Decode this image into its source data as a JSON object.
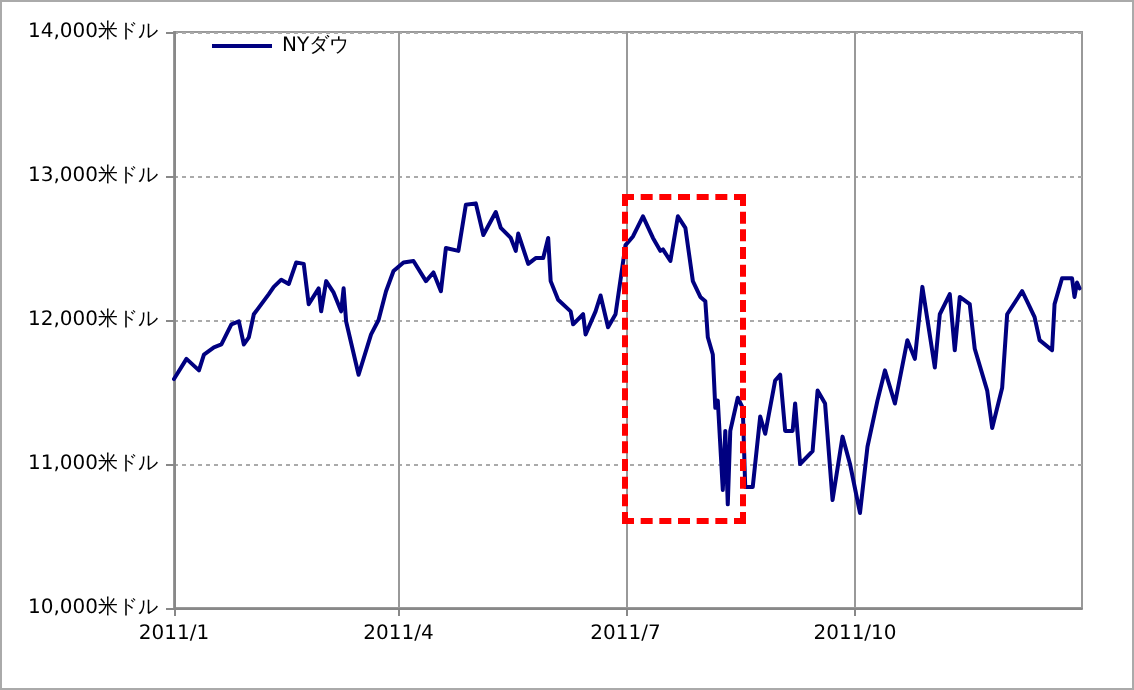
{
  "chart_data": {
    "type": "line",
    "x": [
      "2011-01-01",
      "2011-01-06",
      "2011-01-11",
      "2011-01-13",
      "2011-01-17",
      "2011-01-20",
      "2011-01-24",
      "2011-01-27",
      "2011-01-29",
      "2011-01-31",
      "2011-02-02",
      "2011-02-08",
      "2011-02-10",
      "2011-02-13",
      "2011-02-16",
      "2011-02-19",
      "2011-02-22",
      "2011-02-24",
      "2011-02-28",
      "2011-03-01",
      "2011-03-03",
      "2011-03-06",
      "2011-03-09",
      "2011-03-10",
      "2011-03-11",
      "2011-03-16",
      "2011-03-21",
      "2011-03-24",
      "2011-03-27",
      "2011-03-30",
      "2011-04-03",
      "2011-04-07",
      "2011-04-12",
      "2011-04-15",
      "2011-04-18",
      "2011-04-20",
      "2011-04-25",
      "2011-04-28",
      "2011-05-02",
      "2011-05-05",
      "2011-05-10",
      "2011-05-12",
      "2011-05-16",
      "2011-05-18",
      "2011-05-19",
      "2011-05-23",
      "2011-05-26",
      "2011-05-29",
      "2011-05-31",
      "2011-06-01",
      "2011-06-04",
      "2011-06-09",
      "2011-06-10",
      "2011-06-14",
      "2011-06-15",
      "2011-06-19",
      "2011-06-21",
      "2011-06-24",
      "2011-06-27",
      "2011-07-01",
      "2011-07-04",
      "2011-07-08",
      "2011-07-12",
      "2011-07-15",
      "2011-07-16",
      "2011-07-19",
      "2011-07-22",
      "2011-07-25",
      "2011-07-28",
      "2011-07-31",
      "2011-08-02",
      "2011-08-03",
      "2011-08-05",
      "2011-08-06",
      "2011-08-07",
      "2011-08-09",
      "2011-08-10",
      "2011-08-11",
      "2011-08-12",
      "2011-08-15",
      "2011-08-17",
      "2011-08-18",
      "2011-08-21",
      "2011-08-24",
      "2011-08-26",
      "2011-08-30",
      "2011-09-01",
      "2011-09-03",
      "2011-09-06",
      "2011-09-07",
      "2011-09-09",
      "2011-09-14",
      "2011-09-16",
      "2011-09-19",
      "2011-09-22",
      "2011-09-26",
      "2011-09-29",
      "2011-10-03",
      "2011-10-06",
      "2011-10-10",
      "2011-10-13",
      "2011-10-17",
      "2011-10-22",
      "2011-10-25",
      "2011-10-28",
      "2011-11-02",
      "2011-11-04",
      "2011-11-08",
      "2011-11-10",
      "2011-11-12",
      "2011-11-16",
      "2011-11-18",
      "2011-11-23",
      "2011-11-25",
      "2011-11-29",
      "2011-12-01",
      "2011-12-07",
      "2011-12-09",
      "2011-12-12",
      "2011-12-14",
      "2011-12-19",
      "2011-12-20",
      "2011-12-23",
      "2011-12-27",
      "2011-12-28",
      "2011-12-29",
      "2011-12-30"
    ],
    "series": [
      {
        "name": "NYダウ",
        "color": "#000080",
        "values": [
          11590,
          11730,
          11650,
          11760,
          11810,
          11830,
          11970,
          11990,
          11830,
          11880,
          12040,
          12180,
          12230,
          12280,
          12250,
          12400,
          12390,
          12110,
          12220,
          12060,
          12270,
          12190,
          12060,
          12220,
          11990,
          11620,
          11900,
          12000,
          12200,
          12340,
          12400,
          12410,
          12270,
          12330,
          12200,
          12500,
          12480,
          12800,
          12810,
          12590,
          12750,
          12640,
          12570,
          12480,
          12600,
          12390,
          12430,
          12430,
          12570,
          12270,
          12140,
          12060,
          11970,
          12040,
          11900,
          12060,
          12170,
          11950,
          12040,
          12520,
          12580,
          12720,
          12570,
          12480,
          12490,
          12410,
          12720,
          12640,
          12270,
          12160,
          12130,
          11880,
          11760,
          11390,
          11440,
          10820,
          11230,
          10720,
          11230,
          11460,
          11390,
          10840,
          10840,
          11330,
          11210,
          11580,
          11620,
          11230,
          11230,
          11420,
          11000,
          11090,
          11510,
          11420,
          10750,
          11190,
          11000,
          10660,
          11120,
          11440,
          11650,
          11420,
          11860,
          11730,
          12230,
          11670,
          12040,
          12180,
          11790,
          12160,
          12110,
          11800,
          11510,
          11250,
          11530,
          12040,
          12200,
          12130,
          12020,
          11860,
          11790,
          12110,
          12290,
          12290,
          12160,
          12260,
          12220
        ]
      }
    ],
    "xlim": [
      "2011-01-01",
      "2011-12-31"
    ],
    "xticks": [
      {
        "value": "2011-01-01",
        "label": "2011/1"
      },
      {
        "value": "2011-04-01",
        "label": "2011/4"
      },
      {
        "value": "2011-07-01",
        "label": "2011/7"
      },
      {
        "value": "2011-10-01",
        "label": "2011/10"
      }
    ],
    "ylim": [
      10000,
      14000
    ],
    "yticks": [
      {
        "value": 10000,
        "label": "10,000米ドル"
      },
      {
        "value": 11000,
        "label": "11,000米ドル"
      },
      {
        "value": 12000,
        "label": "12,000米ドル"
      },
      {
        "value": 13000,
        "label": "13,000米ドル"
      },
      {
        "value": 14000,
        "label": "14,000米ドル"
      }
    ],
    "grid": true,
    "legend": "top left",
    "marker": "none",
    "line_style": "solid"
  }
}
